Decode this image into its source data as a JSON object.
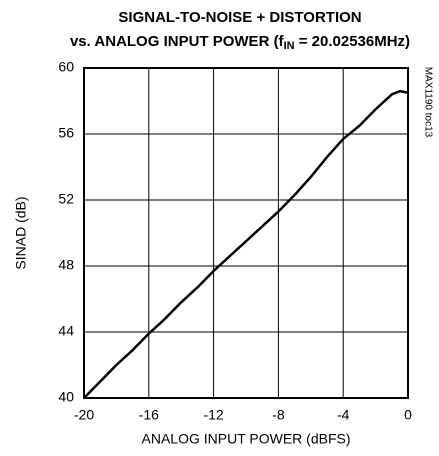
{
  "chart_data": {
    "type": "line",
    "title": {
      "line1": "SIGNAL-TO-NOISE + DISTORTION",
      "line2": [
        "vs. ANALOG INPUT POWER (f",
        "IN",
        " = 20.02536MHz)"
      ]
    },
    "annotation": "MAX1190 toc13",
    "x_label": "ANALOG INPUT POWER (dBFS)",
    "y_label": "SINAD (dB)",
    "x": [
      -20,
      -19,
      -18,
      -17,
      -16,
      -15,
      -14,
      -13,
      -12,
      -11,
      -10,
      -9,
      -8,
      -7,
      -6,
      -5,
      -4,
      -3,
      -2,
      -1,
      -0.5,
      0
    ],
    "series": [
      {
        "name": "SINAD",
        "color": "#000000",
        "values": [
          40.0,
          41.0,
          42.0,
          42.9,
          43.9,
          44.8,
          45.8,
          46.7,
          47.7,
          48.6,
          49.5,
          50.4,
          51.3,
          52.3,
          53.4,
          54.6,
          55.7,
          56.5,
          57.5,
          58.4,
          58.6,
          58.5
        ]
      }
    ],
    "xlim": [
      -20,
      0
    ],
    "xticks": [
      -20,
      -16,
      -12,
      -8,
      -4,
      0
    ],
    "ylim": [
      40,
      60
    ],
    "yticks": [
      40,
      44,
      48,
      52,
      56,
      60
    ],
    "grid": true
  }
}
